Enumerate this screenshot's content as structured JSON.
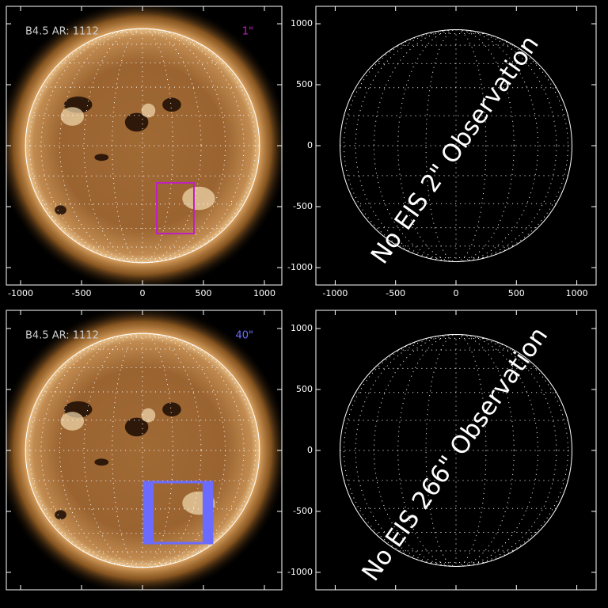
{
  "panels": [
    {
      "kind": "image",
      "info": "B4.5 AR: 1112",
      "scale_label": "1\"",
      "fov_color": "#c020c0",
      "fov": {
        "x": [
          117,
          422
        ],
        "y": [
          -721,
          -305
        ]
      },
      "xlim": [
        -1117,
        1143
      ],
      "ylim": [
        -1143,
        1143
      ],
      "xticks": [
        -1000,
        -500,
        0,
        500,
        1000
      ],
      "yticks": [
        -1000,
        -500,
        0,
        500,
        1000
      ],
      "x_labels": true,
      "y_labels": false
    },
    {
      "kind": "empty",
      "message": "No EIS 2\" Observation",
      "xlim": [
        -1160,
        1160
      ],
      "ylim": [
        -1143,
        1143
      ],
      "xticks": [
        -1000,
        -500,
        0,
        500,
        1000
      ],
      "yticks": [
        -1000,
        -500,
        0,
        500,
        1000
      ],
      "x_labels": true,
      "y_labels": true
    },
    {
      "kind": "image",
      "info": "B4.5 AR: 1112",
      "scale_label": "40\"",
      "fov_color": "#6b6bff",
      "fov": {
        "x": [
          13,
          571
        ],
        "y": [
          -760,
          -260
        ]
      },
      "xlim": [
        -1117,
        1143
      ],
      "ylim": [
        -1143,
        1149
      ],
      "xticks": [
        -1000,
        -500,
        0,
        500,
        1000
      ],
      "yticks": [
        -1000,
        -500,
        0,
        500,
        1000
      ],
      "x_labels": false,
      "y_labels": false
    },
    {
      "kind": "empty",
      "message": "No EIS 266\" Observation",
      "xlim": [
        -1160,
        1160
      ],
      "ylim": [
        -1143,
        1149
      ],
      "xticks": [
        -1000,
        -500,
        0,
        500,
        1000
      ],
      "yticks": [
        -1000,
        -500,
        0,
        500,
        1000
      ],
      "x_labels": false,
      "y_labels": true
    }
  ]
}
